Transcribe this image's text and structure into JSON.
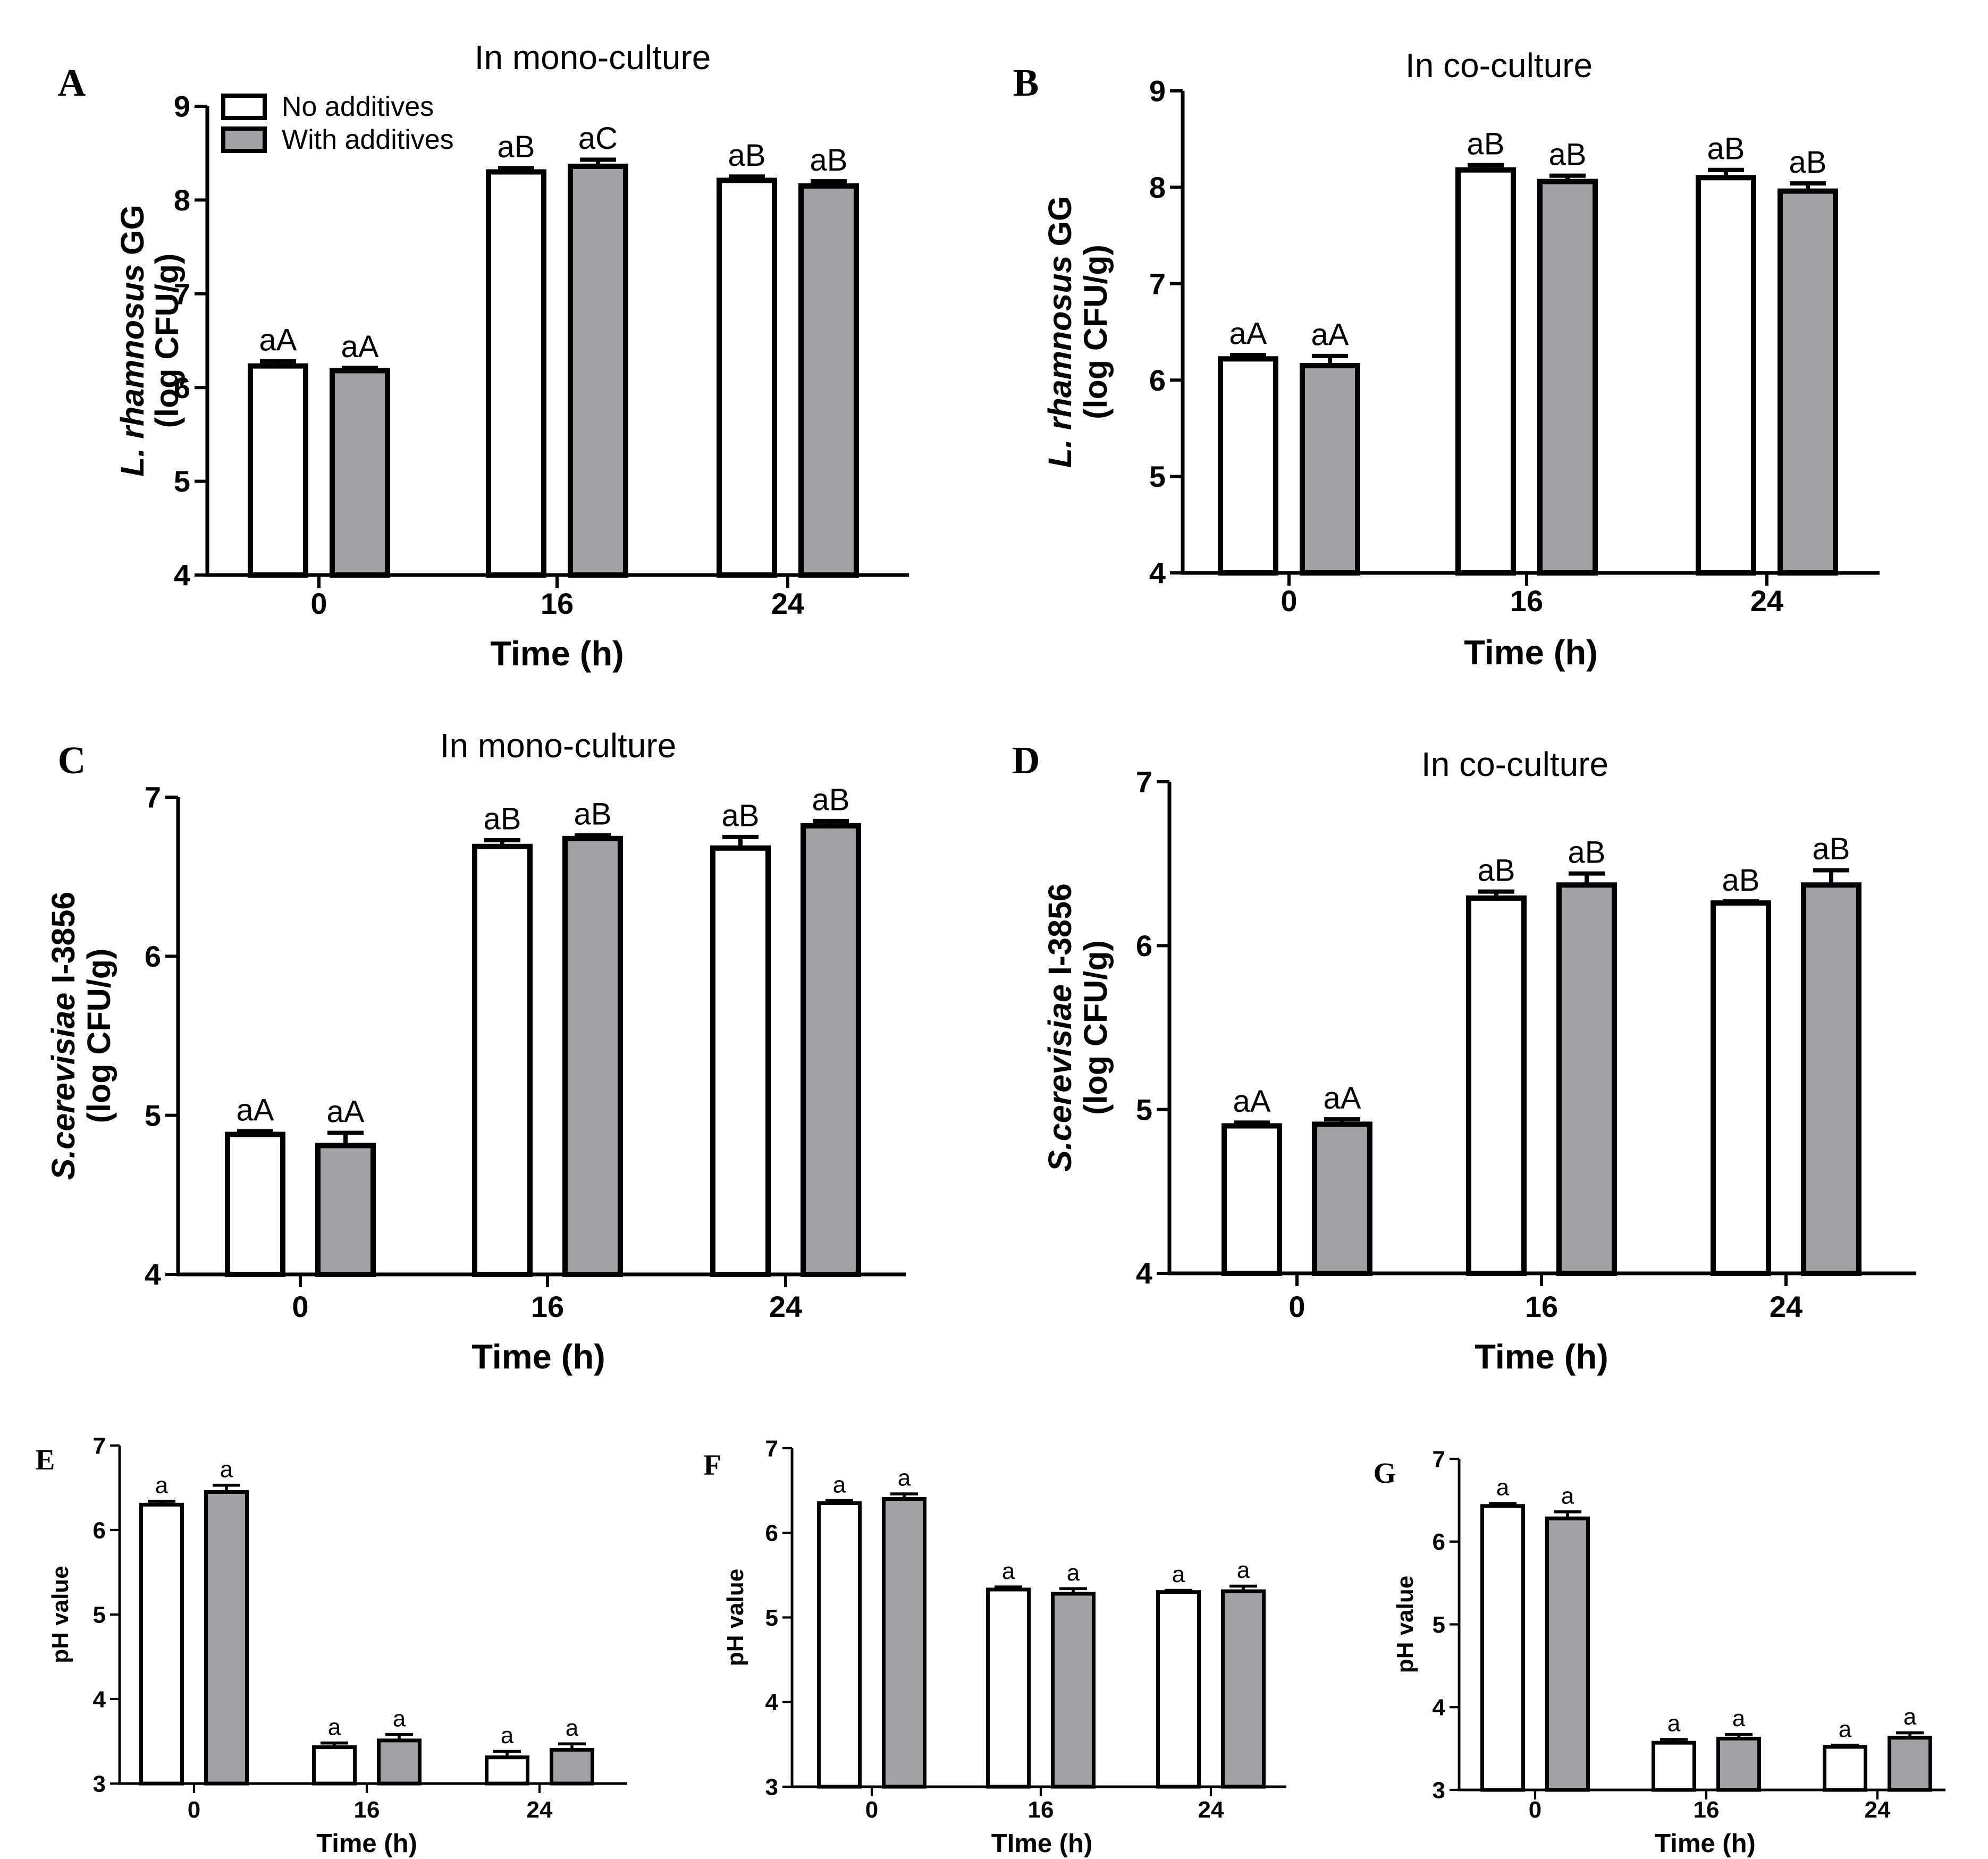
{
  "colors": {
    "no_additives": "#ffffff",
    "with_additives": "#a2a1a5",
    "stroke": "#000000"
  },
  "legend": {
    "items": [
      "No additives",
      "With additives"
    ]
  },
  "chart_data": [
    {
      "panel": "A",
      "type": "bar",
      "title": "In mono-culture",
      "ylabel_italic": "L. rhamnosus",
      "ylabel_rest": " GG",
      "ylabel2": "(log CFU/g)",
      "xlabel": "Time (h)",
      "categories": [
        "0",
        "16",
        "24"
      ],
      "ylim": [
        4,
        9
      ],
      "yticks": [
        "4",
        "5",
        "6",
        "7",
        "8",
        "9"
      ],
      "series": [
        {
          "name": "No additives",
          "values": [
            6.23,
            8.3,
            8.21
          ],
          "errors": [
            0.05,
            0.04,
            0.04
          ],
          "labels": [
            "aA",
            "aB",
            "aB"
          ]
        },
        {
          "name": "With additives",
          "values": [
            6.18,
            8.36,
            8.15
          ],
          "errors": [
            0.03,
            0.07,
            0.05
          ],
          "labels": [
            "aA",
            "aC",
            "aB"
          ]
        }
      ]
    },
    {
      "panel": "B",
      "type": "bar",
      "title": "In co-culture",
      "ylabel_italic": "L. rhamnosus",
      "ylabel_rest": " GG",
      "ylabel2": "(log CFU/g)",
      "xlabel": "Time (h)",
      "categories": [
        "0",
        "16",
        "24"
      ],
      "ylim": [
        4,
        9
      ],
      "yticks": [
        "4",
        "5",
        "6",
        "7",
        "8",
        "9"
      ],
      "series": [
        {
          "name": "No additives",
          "values": [
            6.22,
            8.18,
            8.1
          ],
          "errors": [
            0.04,
            0.05,
            0.08
          ],
          "labels": [
            "aA",
            "aB",
            "aB"
          ]
        },
        {
          "name": "With additives",
          "values": [
            6.15,
            8.06,
            7.96
          ],
          "errors": [
            0.1,
            0.06,
            0.08
          ],
          "labels": [
            "aA",
            "aB",
            "aB"
          ]
        }
      ]
    },
    {
      "panel": "C",
      "type": "bar",
      "title": "In mono-culture",
      "ylabel_italic": "S.cerevisiae",
      "ylabel_rest": " I-3856",
      "ylabel2": "(log CFU/g)",
      "xlabel": "Time (h)",
      "categories": [
        "0",
        "16",
        "24"
      ],
      "ylim": [
        4,
        7
      ],
      "yticks": [
        "4",
        "5",
        "6",
        "7"
      ],
      "series": [
        {
          "name": "No additives",
          "values": [
            4.88,
            6.69,
            6.68
          ],
          "errors": [
            0.02,
            0.04,
            0.07
          ],
          "labels": [
            "aA",
            "aB",
            "aB"
          ]
        },
        {
          "name": "With additives",
          "values": [
            4.81,
            6.74,
            6.82
          ],
          "errors": [
            0.08,
            0.02,
            0.03
          ],
          "labels": [
            "aA",
            "aB",
            "aB"
          ]
        }
      ]
    },
    {
      "panel": "D",
      "type": "bar",
      "title": "In co-culture",
      "ylabel_italic": "S.cerevisiae",
      "ylabel_rest": " I-3856",
      "ylabel2": "(log CFU/g)",
      "xlabel": "Time (h)",
      "categories": [
        "0",
        "16",
        "24"
      ],
      "ylim": [
        4,
        7
      ],
      "yticks": [
        "4",
        "5",
        "6",
        "7"
      ],
      "series": [
        {
          "name": "No additives",
          "values": [
            4.9,
            6.29,
            6.26
          ],
          "errors": [
            0.02,
            0.04,
            0.01
          ],
          "labels": [
            "aA",
            "aB",
            "aB"
          ]
        },
        {
          "name": "With additives",
          "values": [
            4.91,
            6.37,
            6.37
          ],
          "errors": [
            0.03,
            0.07,
            0.09
          ],
          "labels": [
            "aA",
            "aB",
            "aB"
          ]
        }
      ]
    },
    {
      "panel": "E",
      "type": "bar",
      "title": "",
      "ylabel": "pH value",
      "xlabel": "Time (h)",
      "categories": [
        "0",
        "16",
        "24"
      ],
      "ylim": [
        3,
        7
      ],
      "yticks": [
        "3",
        "4",
        "5",
        "6",
        "7"
      ],
      "series": [
        {
          "name": "No additives",
          "values": [
            6.3,
            3.43,
            3.31
          ],
          "errors": [
            0.04,
            0.05,
            0.07
          ],
          "labels": [
            "a",
            "a",
            "a"
          ]
        },
        {
          "name": "With additives",
          "values": [
            6.45,
            3.51,
            3.4
          ],
          "errors": [
            0.08,
            0.07,
            0.07
          ],
          "labels": [
            "a",
            "a",
            "a"
          ]
        }
      ]
    },
    {
      "panel": "F",
      "type": "bar",
      "title": "",
      "ylabel": "pH value",
      "xlabel": "TIme (h)",
      "categories": [
        "0",
        "16",
        "24"
      ],
      "ylim": [
        3,
        7
      ],
      "yticks": [
        "3",
        "4",
        "5",
        "6",
        "7"
      ],
      "series": [
        {
          "name": "No additives",
          "values": [
            6.35,
            5.33,
            5.3
          ],
          "errors": [
            0.03,
            0.03,
            0.02
          ],
          "labels": [
            "a",
            "a",
            "a"
          ]
        },
        {
          "name": "With additives",
          "values": [
            6.4,
            5.28,
            5.31
          ],
          "errors": [
            0.06,
            0.06,
            0.06
          ],
          "labels": [
            "a",
            "a",
            "a"
          ]
        }
      ]
    },
    {
      "panel": "G",
      "type": "bar",
      "title": "",
      "ylabel": "pH value",
      "xlabel": "Time (h)",
      "categories": [
        "0",
        "16",
        "24"
      ],
      "ylim": [
        3,
        7
      ],
      "yticks": [
        "3",
        "4",
        "5",
        "6",
        "7"
      ],
      "series": [
        {
          "name": "No additives",
          "values": [
            6.43,
            3.57,
            3.52
          ],
          "errors": [
            0.03,
            0.04,
            0.02
          ],
          "labels": [
            "a",
            "a",
            "a"
          ]
        },
        {
          "name": "With additives",
          "values": [
            6.28,
            3.62,
            3.63
          ],
          "errors": [
            0.08,
            0.05,
            0.06
          ],
          "labels": [
            "a",
            "a",
            "a"
          ]
        }
      ]
    }
  ]
}
